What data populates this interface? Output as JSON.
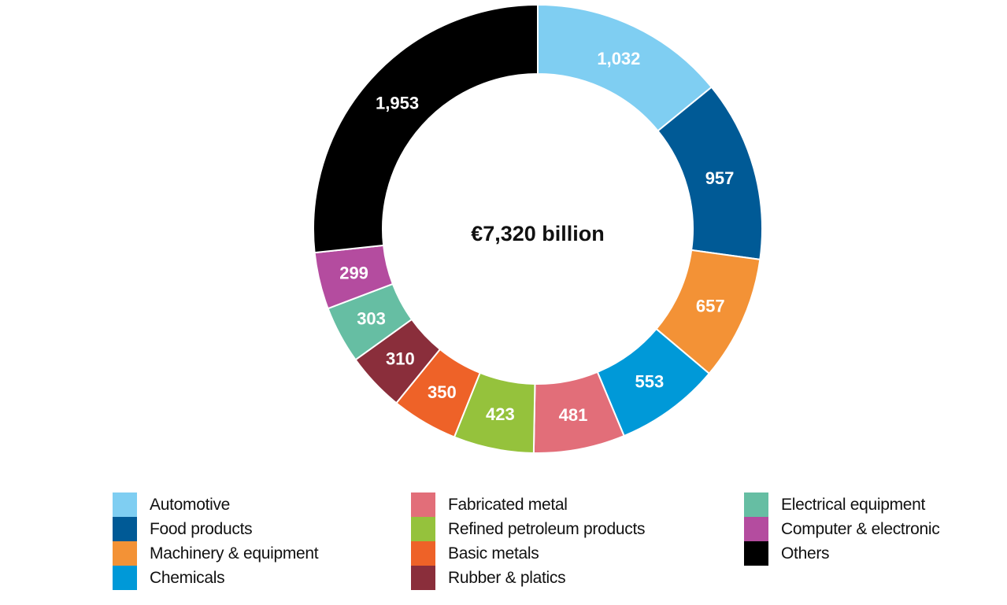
{
  "chart_data": {
    "type": "pie",
    "variant": "donut",
    "center_label": "€7,320 billion",
    "total": 7320,
    "unit": "€ billion",
    "start_angle": "top",
    "direction": "clockwise",
    "legend_position": "bottom",
    "slices": [
      {
        "name": "Automotive",
        "value": 1032,
        "label": "1,032",
        "color": "#7fcef2",
        "label_color": "#ffffff"
      },
      {
        "name": "Food products",
        "value": 957,
        "label": "957",
        "color": "#005a96",
        "label_color": "#ffffff"
      },
      {
        "name": "Machinery & equipment",
        "value": 657,
        "label": "657",
        "color": "#f39236",
        "label_color": "#ffffff"
      },
      {
        "name": "Chemicals",
        "value": 553,
        "label": "553",
        "color": "#0099d8",
        "label_color": "#ffffff"
      },
      {
        "name": "Fabricated metal",
        "value": 481,
        "label": "481",
        "color": "#e26e79",
        "label_color": "#ffffff"
      },
      {
        "name": "Refined petroleum products",
        "value": 423,
        "label": "423",
        "color": "#95c23c",
        "label_color": "#ffffff"
      },
      {
        "name": "Basic metals",
        "value": 350,
        "label": "350",
        "color": "#ee6228",
        "label_color": "#ffffff"
      },
      {
        "name": "Rubber & platics",
        "value": 310,
        "label": "310",
        "color": "#8a2e3b",
        "label_color": "#ffffff"
      },
      {
        "name": "Electrical equipment",
        "value": 303,
        "label": "303",
        "color": "#66bea3",
        "label_color": "#ffffff"
      },
      {
        "name": "Computer & electronic",
        "value": 299,
        "label": "299",
        "color": "#b44c9f",
        "label_color": "#ffffff"
      },
      {
        "name": "Others",
        "value": 1953,
        "label": "1,953",
        "color": "#000000",
        "label_color": "#ffffff"
      }
    ],
    "legend_columns": [
      [
        0,
        1,
        2,
        3
      ],
      [
        4,
        5,
        6,
        7
      ],
      [
        8,
        9,
        10
      ]
    ]
  }
}
